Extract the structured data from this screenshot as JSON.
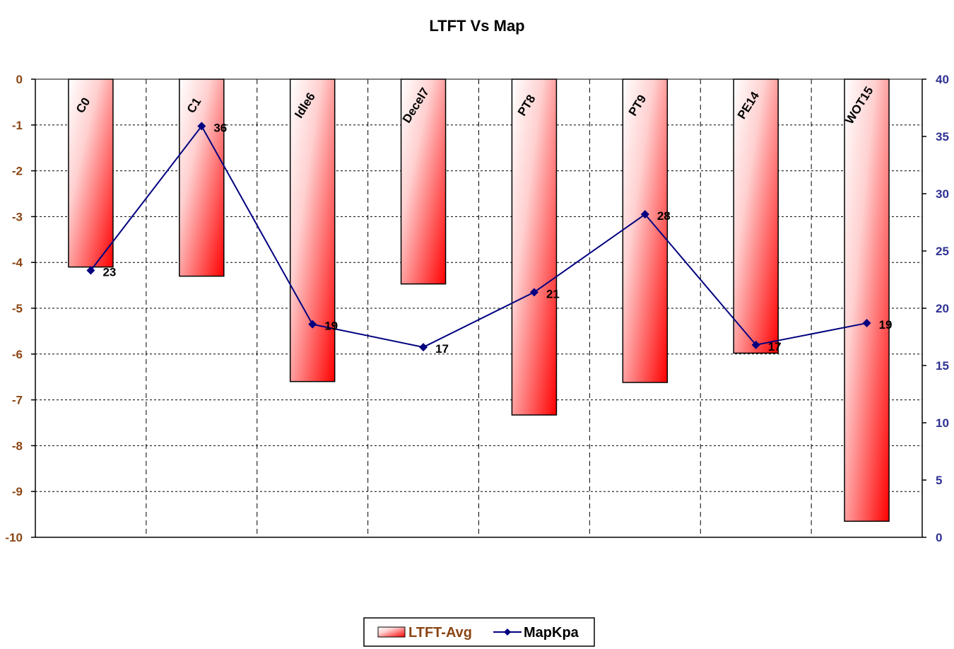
{
  "chart_data": {
    "type": "bar+line",
    "title": "LTFT Vs Map",
    "categories": [
      "C0",
      "C1",
      "Idle6",
      "Decel7",
      "PT8",
      "PT9",
      "PE14",
      "WOT15"
    ],
    "series": [
      {
        "name": "LTFT-Avg",
        "type": "bar",
        "axis": "left",
        "values": [
          -4.1,
          -4.3,
          -6.6,
          -4.47,
          -7.33,
          -6.62,
          -5.98,
          -9.65
        ]
      },
      {
        "name": "MapKpa",
        "type": "line",
        "axis": "right",
        "values": [
          23.3,
          35.9,
          18.6,
          16.6,
          21.4,
          28.2,
          16.8,
          18.7
        ],
        "labels": [
          "23",
          "36",
          "19",
          "17",
          "21",
          "28",
          "17",
          "19"
        ]
      }
    ],
    "left_axis": {
      "ylim": [
        -10,
        0
      ],
      "ticks": [
        "0",
        "-1",
        "-2",
        "-3",
        "-4",
        "-5",
        "-6",
        "-7",
        "-8",
        "-9",
        "-10"
      ]
    },
    "right_axis": {
      "ylim": [
        0,
        40
      ],
      "ticks": [
        "40",
        "35",
        "30",
        "25",
        "20",
        "15",
        "10",
        "5",
        "0"
      ]
    },
    "grid": true,
    "legend": "bottom-center",
    "colors": {
      "bar_light": "#ffffff",
      "bar_dark": "#ff0000",
      "line": "#000080",
      "left_axis_text": "#8B4513",
      "right_axis_text": "#2E3192"
    }
  }
}
